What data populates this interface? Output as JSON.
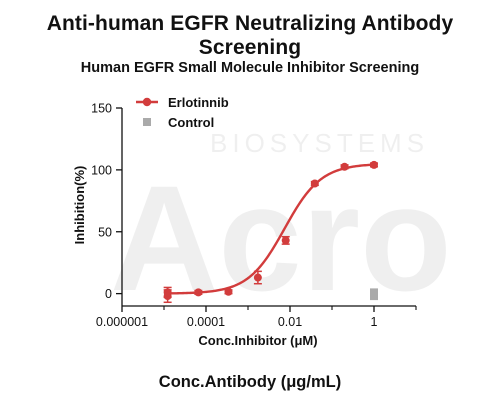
{
  "page_title": "Anti-human EGFR Neutralizing Antibody Screening",
  "bottom_label": "Conc.Antibody (μg/mL)",
  "chart_data": {
    "type": "scatter",
    "title": "Human EGFR Small Molecule Inhibitor Screening",
    "xlabel": "Conc.Inhibitor (μM)",
    "ylabel": "Inhibition(%)",
    "xscale": "log",
    "xlim": [
      1e-06,
      10
    ],
    "ylim": [
      -10,
      150
    ],
    "x_ticks": [
      1e-06,
      0.0001,
      0.01,
      1
    ],
    "x_tick_labels": [
      "0.000001",
      "0.0001",
      "0.01",
      "1"
    ],
    "y_ticks": [
      0,
      50,
      100,
      150
    ],
    "y_tick_labels": [
      "0",
      "50",
      "100",
      "150"
    ],
    "grid": false,
    "legend_position": "top-left",
    "series": [
      {
        "name": "Erlotinnib",
        "color": "#d23c3c",
        "marker": "circle",
        "fit": "sigmoidal",
        "x": [
          1.22e-05,
          1.22e-05,
          6.58e-05,
          0.000343,
          0.00172,
          0.0079,
          0.039,
          0.199,
          1.0
        ],
        "y": [
          -2,
          1,
          1,
          1.5,
          13,
          43,
          89,
          102.5,
          104
        ],
        "error": [
          5,
          4,
          1.5,
          1.5,
          5,
          3,
          1.5,
          1.5,
          1.5
        ]
      },
      {
        "name": "Control",
        "color": "#aaaaaa",
        "marker": "square",
        "x": [
          1.0,
          1.0
        ],
        "y": [
          -2,
          1
        ],
        "error": [
          0,
          0
        ]
      }
    ],
    "fit_params": {
      "bottom": 0,
      "top": 105,
      "log_ic50": -2.13,
      "hill": 1.0
    }
  }
}
